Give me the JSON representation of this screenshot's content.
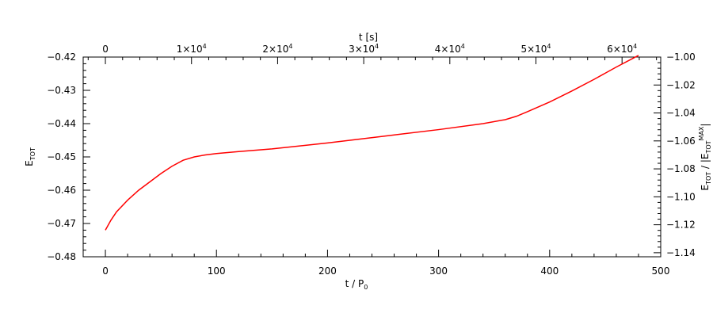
{
  "chart_data": {
    "type": "line",
    "x": [
      0,
      5,
      10,
      20,
      30,
      40,
      50,
      60,
      70,
      80,
      90,
      100,
      120,
      150,
      200,
      250,
      300,
      340,
      360,
      370,
      380,
      400,
      420,
      440,
      460,
      480
    ],
    "series": [
      {
        "color": "#ff0000",
        "values": [
          -0.472,
          -0.469,
          -0.4665,
          -0.463,
          -0.46,
          -0.4575,
          -0.455,
          -0.4528,
          -0.451,
          -0.45,
          -0.4494,
          -0.449,
          -0.4484,
          -0.4476,
          -0.4458,
          -0.4438,
          -0.4418,
          -0.44,
          -0.4388,
          -0.4378,
          -0.4364,
          -0.4335,
          -0.4302,
          -0.4267,
          -0.423,
          -0.4195
        ]
      }
    ],
    "xlim": [
      -20,
      500
    ],
    "ylim": [
      -0.48,
      -0.42
    ],
    "xticks": [
      0,
      100,
      200,
      300,
      400,
      500
    ],
    "xtick_labels": [
      "0",
      "100",
      "200",
      "300",
      "400",
      "500"
    ],
    "yticks": [
      -0.48,
      -0.47,
      -0.46,
      -0.45,
      -0.44,
      -0.43,
      -0.42
    ],
    "ytick_labels": [
      "−0.48",
      "−0.47",
      "−0.46",
      "−0.45",
      "−0.44",
      "−0.43",
      "−0.42"
    ],
    "xlabel": {
      "main": "t / P",
      "sub": "0"
    },
    "ylabel": {
      "main": "E",
      "sub": "TOT"
    },
    "top_axis": {
      "label": "t [s]",
      "ticks": [
        0,
        10000,
        20000,
        30000,
        40000,
        50000,
        60000
      ],
      "tick_labels": [
        {
          "base": "0",
          "exp": ""
        },
        {
          "base": "1×10",
          "exp": "4"
        },
        {
          "base": "2×10",
          "exp": "4"
        },
        {
          "base": "3×10",
          "exp": "4"
        },
        {
          "base": "4×10",
          "exp": "4"
        },
        {
          "base": "5×10",
          "exp": "4"
        },
        {
          "base": "6×10",
          "exp": "4"
        }
      ],
      "x_at_zero": 0,
      "x_per_unit": 0.007753
    },
    "right_axis": {
      "label": {
        "lead": "E",
        "lead_sub": "TOT",
        "mid": " / |E",
        "mid_sub": "TOT",
        "mid_sup": "MAX",
        "tail": "|"
      },
      "ticks": [
        -1.14,
        -1.12,
        -1.1,
        -1.08,
        -1.06,
        -1.04,
        -1.02,
        -1.0
      ],
      "tick_labels": [
        "−1.14",
        "−1.12",
        "−1.10",
        "−1.08",
        "−1.06",
        "−1.04",
        "−1.02",
        "−1.00"
      ],
      "ylim": [
        -1.1429,
        -1.0
      ]
    },
    "grid": false,
    "legend": "none",
    "axis_color": "#000000"
  }
}
